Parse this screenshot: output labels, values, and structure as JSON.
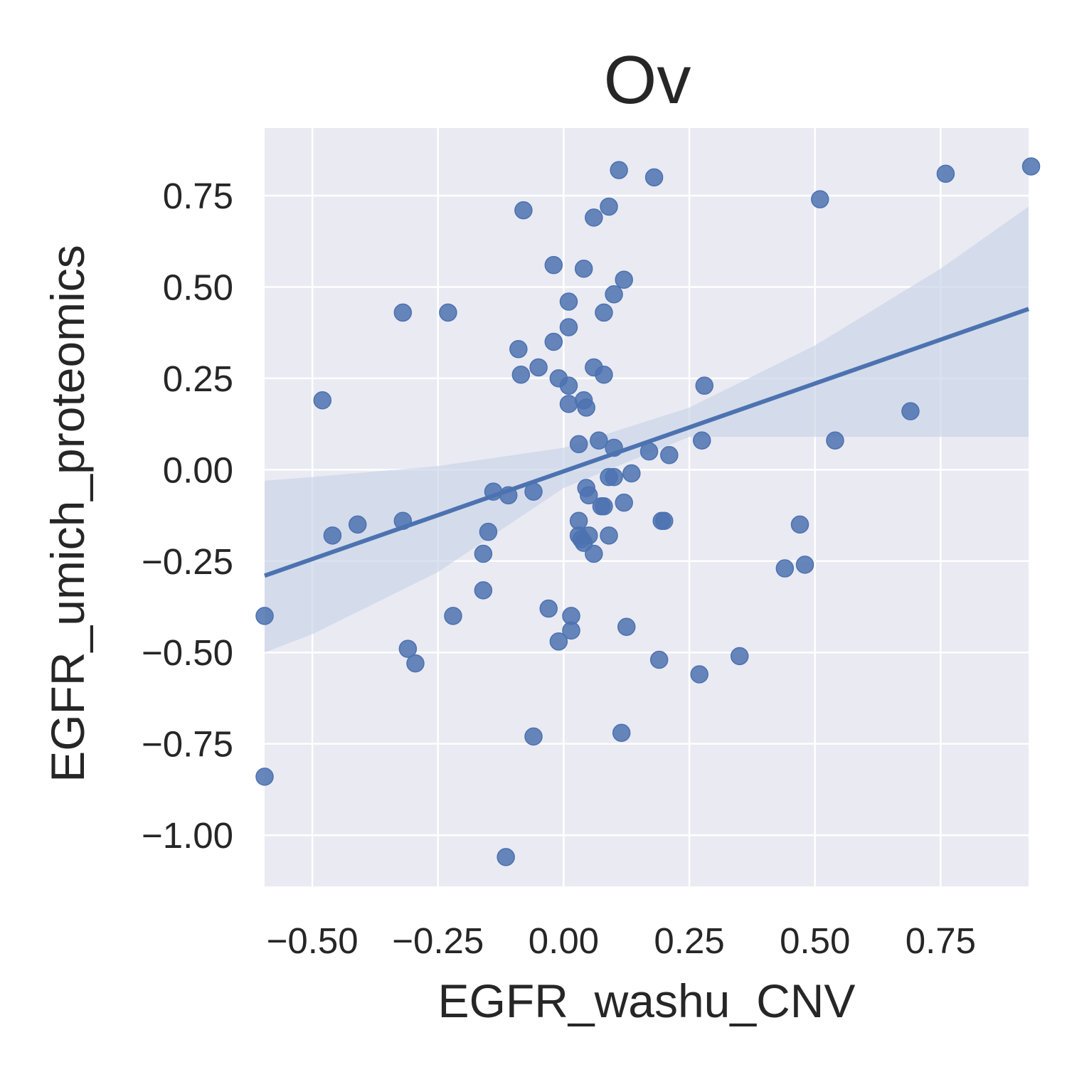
{
  "chart_data": {
    "type": "scatter",
    "title": "Ov",
    "xlabel": "EGFR_washu_CNV",
    "ylabel": "EGFR_umich_proteomics",
    "xlim": [
      -0.595,
      0.925
    ],
    "ylim": [
      -1.14,
      0.935
    ],
    "xticks": [
      -0.5,
      -0.25,
      0.0,
      0.25,
      0.5,
      0.75
    ],
    "xtick_labels": [
      "−0.50",
      "−0.25",
      "0.00",
      "0.25",
      "0.50",
      "0.75"
    ],
    "yticks": [
      0.75,
      0.5,
      0.25,
      0.0,
      -0.25,
      -0.5,
      -0.75,
      -1.0
    ],
    "ytick_labels": [
      "0.75",
      "0.50",
      "0.25",
      "0.00",
      "−0.25",
      "−0.50",
      "−0.75",
      "−1.00"
    ],
    "grid": true,
    "style": {
      "background": "#eaeaf2",
      "grid_color": "#ffffff",
      "point_color": "#4c72b0",
      "line_color": "#4c72b0",
      "band_color": "#c8d2e6"
    },
    "regression": {
      "x": [
        -0.595,
        0.925
      ],
      "y": [
        -0.29,
        0.44
      ]
    },
    "confidence_band": {
      "x": [
        -0.595,
        -0.5,
        -0.25,
        0.0,
        0.25,
        0.5,
        0.75,
        0.925
      ],
      "upper": [
        -0.03,
        -0.02,
        0.01,
        0.06,
        0.17,
        0.34,
        0.55,
        0.72
      ],
      "lower": [
        -0.5,
        -0.45,
        -0.28,
        -0.05,
        0.09,
        0.09,
        0.09,
        0.09
      ]
    },
    "points": [
      {
        "x": 0.11,
        "y": 0.82
      },
      {
        "x": 0.18,
        "y": 0.8
      },
      {
        "x": 0.93,
        "y": 0.83
      },
      {
        "x": 0.76,
        "y": 0.81
      },
      {
        "x": 0.51,
        "y": 0.74
      },
      {
        "x": 0.09,
        "y": 0.72
      },
      {
        "x": -0.08,
        "y": 0.71
      },
      {
        "x": 0.06,
        "y": 0.69
      },
      {
        "x": -0.02,
        "y": 0.56
      },
      {
        "x": 0.04,
        "y": 0.55
      },
      {
        "x": 0.12,
        "y": 0.52
      },
      {
        "x": 0.1,
        "y": 0.48
      },
      {
        "x": 0.01,
        "y": 0.46
      },
      {
        "x": -0.32,
        "y": 0.43
      },
      {
        "x": -0.23,
        "y": 0.43
      },
      {
        "x": 0.08,
        "y": 0.43
      },
      {
        "x": 0.01,
        "y": 0.39
      },
      {
        "x": -0.02,
        "y": 0.35
      },
      {
        "x": -0.09,
        "y": 0.33
      },
      {
        "x": -0.05,
        "y": 0.28
      },
      {
        "x": -0.085,
        "y": 0.26
      },
      {
        "x": 0.06,
        "y": 0.28
      },
      {
        "x": 0.08,
        "y": 0.26
      },
      {
        "x": -0.01,
        "y": 0.25
      },
      {
        "x": 0.01,
        "y": 0.23
      },
      {
        "x": 0.28,
        "y": 0.23
      },
      {
        "x": -0.48,
        "y": 0.19
      },
      {
        "x": 0.04,
        "y": 0.19
      },
      {
        "x": 0.01,
        "y": 0.18
      },
      {
        "x": 0.045,
        "y": 0.17
      },
      {
        "x": 0.69,
        "y": 0.16
      },
      {
        "x": 0.54,
        "y": 0.08
      },
      {
        "x": 0.07,
        "y": 0.08
      },
      {
        "x": 0.275,
        "y": 0.08
      },
      {
        "x": 0.03,
        "y": 0.07
      },
      {
        "x": 0.1,
        "y": 0.06
      },
      {
        "x": 0.17,
        "y": 0.05
      },
      {
        "x": 0.21,
        "y": 0.04
      },
      {
        "x": 0.135,
        "y": -0.01
      },
      {
        "x": 0.1,
        "y": -0.02
      },
      {
        "x": 0.09,
        "y": -0.02
      },
      {
        "x": -0.14,
        "y": -0.06
      },
      {
        "x": -0.06,
        "y": -0.06
      },
      {
        "x": 0.045,
        "y": -0.05
      },
      {
        "x": -0.11,
        "y": -0.07
      },
      {
        "x": 0.05,
        "y": -0.07
      },
      {
        "x": 0.12,
        "y": -0.09
      },
      {
        "x": 0.075,
        "y": -0.1
      },
      {
        "x": 0.08,
        "y": -0.1
      },
      {
        "x": -0.32,
        "y": -0.14
      },
      {
        "x": 0.03,
        "y": -0.14
      },
      {
        "x": 0.195,
        "y": -0.14
      },
      {
        "x": 0.2,
        "y": -0.14
      },
      {
        "x": -0.41,
        "y": -0.15
      },
      {
        "x": 0.47,
        "y": -0.15
      },
      {
        "x": -0.15,
        "y": -0.17
      },
      {
        "x": -0.46,
        "y": -0.18
      },
      {
        "x": 0.03,
        "y": -0.18
      },
      {
        "x": 0.05,
        "y": -0.18
      },
      {
        "x": 0.09,
        "y": -0.18
      },
      {
        "x": 0.035,
        "y": -0.19
      },
      {
        "x": 0.04,
        "y": -0.2
      },
      {
        "x": -0.16,
        "y": -0.23
      },
      {
        "x": 0.06,
        "y": -0.23
      },
      {
        "x": 0.48,
        "y": -0.26
      },
      {
        "x": 0.44,
        "y": -0.27
      },
      {
        "x": -0.16,
        "y": -0.33
      },
      {
        "x": -0.03,
        "y": -0.38
      },
      {
        "x": -0.22,
        "y": -0.4
      },
      {
        "x": 0.015,
        "y": -0.4
      },
      {
        "x": -0.595,
        "y": -0.4
      },
      {
        "x": 0.125,
        "y": -0.43
      },
      {
        "x": 0.015,
        "y": -0.44
      },
      {
        "x": -0.01,
        "y": -0.47
      },
      {
        "x": -0.31,
        "y": -0.49
      },
      {
        "x": 0.19,
        "y": -0.52
      },
      {
        "x": 0.35,
        "y": -0.51
      },
      {
        "x": -0.295,
        "y": -0.53
      },
      {
        "x": 0.27,
        "y": -0.56
      },
      {
        "x": -0.06,
        "y": -0.73
      },
      {
        "x": 0.115,
        "y": -0.72
      },
      {
        "x": -0.595,
        "y": -0.84
      },
      {
        "x": -0.115,
        "y": -1.06
      }
    ]
  }
}
